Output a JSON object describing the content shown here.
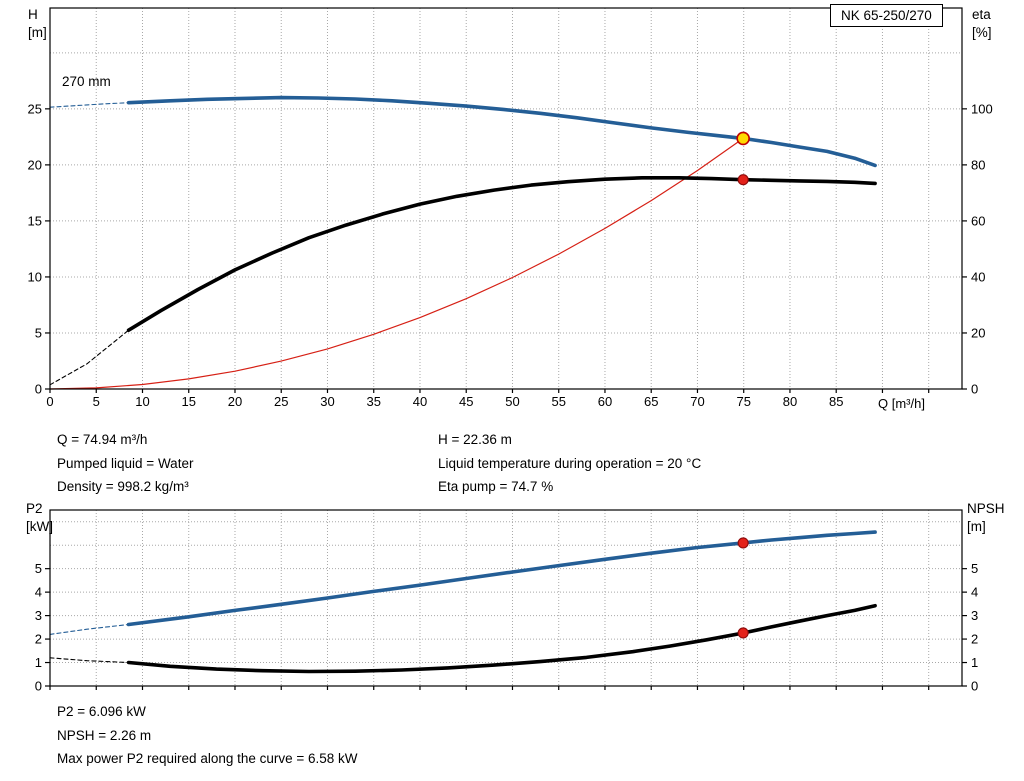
{
  "title_box": "NK 65-250/270",
  "colors": {
    "curve_blue": "#245e96",
    "curve_black": "#000000",
    "system_red": "#d62015",
    "grid": "#a8a8a8",
    "duty_red_fill": "#e32119",
    "duty_red_stroke": "#8f0b0b",
    "duty_yellow_fill": "#ffd900",
    "duty_yellow_stroke": "#c00000"
  },
  "top_chart": {
    "y_left_label": [
      "H",
      "[m]"
    ],
    "y_right_label": [
      "eta",
      "[%]"
    ],
    "x_label": "Q [m³/h]",
    "impeller_label": "270 mm"
  },
  "bottom_chart": {
    "y_left_label": [
      "P2",
      "[kW]"
    ],
    "y_right_label": [
      "NPSH",
      "[m]"
    ]
  },
  "info_lines_left": [
    "Q = 74.94 m³/h",
    "Pumped liquid = Water",
    "Density = 998.2 kg/m³"
  ],
  "info_lines_right": [
    "H = 22.36 m",
    "Liquid temperature during operation = 20 °C",
    "Eta pump = 74.7 %"
  ],
  "footer_lines": [
    "P2 = 6.096 kW",
    "NPSH = 2.26 m",
    "Max power P2 required along the curve = 6.58 kW"
  ],
  "chart_data": [
    {
      "type": "line",
      "x": {
        "label": "Q [m³/h]",
        "min": 0,
        "max": 98.6,
        "tick_step": 5,
        "labeled_ticks": [
          0,
          5,
          10,
          15,
          20,
          25,
          30,
          35,
          40,
          45,
          50,
          55,
          60,
          65,
          70,
          75,
          80,
          85
        ]
      },
      "y_left": {
        "label": "H [m]",
        "min": 0,
        "max": 34,
        "grid_step": 5,
        "labeled_ticks": [
          0,
          5,
          10,
          15,
          20,
          25
        ]
      },
      "y_right": {
        "label": "eta [%]",
        "min": 0,
        "max": 136,
        "labeled_ticks": [
          0,
          20,
          40,
          60,
          80,
          100
        ]
      },
      "series": [
        {
          "name": "head-curve-dashed",
          "axis": "left",
          "color": "#245e96",
          "width": 1.1,
          "dash": "4 3",
          "points": [
            [
              0,
              25.15
            ],
            [
              3,
              25.3
            ],
            [
              6,
              25.45
            ],
            [
              8.5,
              25.55
            ]
          ]
        },
        {
          "name": "eta-curve-dashed",
          "axis": "right",
          "color": "#000000",
          "width": 1.1,
          "dash": "4 3",
          "points": [
            [
              0,
              1.5
            ],
            [
              4,
              9
            ],
            [
              8.5,
              21
            ]
          ]
        },
        {
          "name": "system-curve",
          "axis": "left",
          "color": "#d62015",
          "width": 1.2,
          "dash": null,
          "points": [
            [
              0,
              0
            ],
            [
              5,
              0.1
            ],
            [
              10,
              0.4
            ],
            [
              15,
              0.9
            ],
            [
              20,
              1.59
            ],
            [
              25,
              2.49
            ],
            [
              30,
              3.58
            ],
            [
              35,
              4.88
            ],
            [
              40,
              6.37
            ],
            [
              45,
              8.06
            ],
            [
              50,
              9.95
            ],
            [
              55,
              12.04
            ],
            [
              60,
              14.33
            ],
            [
              65,
              16.81
            ],
            [
              70,
              19.5
            ],
            [
              74.94,
              22.36
            ]
          ]
        },
        {
          "name": "eta-curve",
          "axis": "right",
          "color": "#000000",
          "width": 3.6,
          "dash": null,
          "points": [
            [
              8.5,
              21
            ],
            [
              12,
              28
            ],
            [
              16,
              35.5
            ],
            [
              20,
              42.5
            ],
            [
              24,
              48.5
            ],
            [
              28,
              54
            ],
            [
              32,
              58.5
            ],
            [
              36,
              62.5
            ],
            [
              40,
              66
            ],
            [
              44,
              68.8
            ],
            [
              48,
              71
            ],
            [
              52,
              72.8
            ],
            [
              56,
              74
            ],
            [
              60,
              74.9
            ],
            [
              64,
              75.4
            ],
            [
              68,
              75.4
            ],
            [
              71.5,
              75.1
            ],
            [
              74.94,
              74.7
            ],
            [
              78,
              74.5
            ],
            [
              81,
              74.3
            ],
            [
              84,
              74.1
            ],
            [
              87,
              73.8
            ],
            [
              89.2,
              73.4
            ]
          ]
        },
        {
          "name": "head-curve",
          "axis": "left",
          "color": "#245e96",
          "width": 3.6,
          "dash": null,
          "points": [
            [
              8.5,
              25.55
            ],
            [
              13,
              25.72
            ],
            [
              17,
              25.85
            ],
            [
              21,
              25.93
            ],
            [
              25,
              26.0
            ],
            [
              29,
              25.97
            ],
            [
              33,
              25.88
            ],
            [
              37,
              25.72
            ],
            [
              41,
              25.5
            ],
            [
              45,
              25.25
            ],
            [
              49,
              24.95
            ],
            [
              53,
              24.6
            ],
            [
              57,
              24.2
            ],
            [
              61,
              23.75
            ],
            [
              65,
              23.3
            ],
            [
              69,
              22.9
            ],
            [
              72,
              22.63
            ],
            [
              74.94,
              22.36
            ],
            [
              78,
              22.0
            ],
            [
              81,
              21.6
            ],
            [
              84,
              21.2
            ],
            [
              87,
              20.6
            ],
            [
              89.2,
              19.95
            ]
          ]
        }
      ],
      "markers": [
        {
          "name": "eta-duty-point",
          "q": 74.94,
          "v": 74.7,
          "axis": "right",
          "style": "red",
          "r": 5
        },
        {
          "name": "head-duty-point",
          "q": 74.94,
          "v": 22.36,
          "axis": "left",
          "style": "yellow",
          "r": 6
        }
      ]
    },
    {
      "type": "line",
      "x": {
        "label": "",
        "min": 0,
        "max": 98.6,
        "tick_step": 5,
        "labeled_ticks": []
      },
      "y_left": {
        "label": "P2 [kW]",
        "min": 0,
        "max": 7.5,
        "grid_step": 1,
        "labeled_ticks": [
          0,
          1,
          2,
          3,
          4,
          5
        ]
      },
      "y_right": {
        "label": "NPSH [m]",
        "min": 0,
        "max": 7.5,
        "labeled_ticks": [
          0,
          1,
          2,
          3,
          4,
          5
        ]
      },
      "series": [
        {
          "name": "p2-curve-dashed",
          "axis": "left",
          "color": "#245e96",
          "width": 1.1,
          "dash": "4 3",
          "points": [
            [
              0,
              2.2
            ],
            [
              4,
              2.42
            ],
            [
              8.5,
              2.62
            ]
          ]
        },
        {
          "name": "npsh-curve-dashed",
          "axis": "right",
          "color": "#000000",
          "width": 1.1,
          "dash": "4 3",
          "points": [
            [
              0,
              1.2
            ],
            [
              4,
              1.08
            ],
            [
              8.5,
              1.0
            ]
          ]
        },
        {
          "name": "p2-curve",
          "axis": "left",
          "color": "#245e96",
          "width": 3.6,
          "dash": null,
          "points": [
            [
              8.5,
              2.62
            ],
            [
              15,
              2.95
            ],
            [
              20,
              3.22
            ],
            [
              25,
              3.48
            ],
            [
              30,
              3.75
            ],
            [
              35,
              4.03
            ],
            [
              40,
              4.3
            ],
            [
              45,
              4.58
            ],
            [
              50,
              4.86
            ],
            [
              55,
              5.13
            ],
            [
              60,
              5.4
            ],
            [
              65,
              5.66
            ],
            [
              70,
              5.9
            ],
            [
              74.94,
              6.096
            ],
            [
              78,
              6.22
            ],
            [
              81,
              6.32
            ],
            [
              84,
              6.42
            ],
            [
              87,
              6.5
            ],
            [
              89.2,
              6.56
            ]
          ]
        },
        {
          "name": "npsh-curve",
          "axis": "right",
          "color": "#000000",
          "width": 3.6,
          "dash": null,
          "points": [
            [
              8.5,
              1.0
            ],
            [
              13,
              0.84
            ],
            [
              18,
              0.72
            ],
            [
              23,
              0.65
            ],
            [
              28,
              0.62
            ],
            [
              33,
              0.63
            ],
            [
              38,
              0.68
            ],
            [
              43,
              0.77
            ],
            [
              48,
              0.89
            ],
            [
              53,
              1.04
            ],
            [
              58,
              1.22
            ],
            [
              63,
              1.46
            ],
            [
              67,
              1.7
            ],
            [
              71,
              1.97
            ],
            [
              74.94,
              2.26
            ],
            [
              78,
              2.52
            ],
            [
              81,
              2.76
            ],
            [
              84,
              3.0
            ],
            [
              87,
              3.22
            ],
            [
              89.2,
              3.42
            ]
          ]
        }
      ],
      "markers": [
        {
          "name": "p2-duty-point",
          "q": 74.94,
          "v": 6.096,
          "axis": "left",
          "style": "red",
          "r": 5
        },
        {
          "name": "npsh-duty-point",
          "q": 74.94,
          "v": 2.26,
          "axis": "right",
          "style": "red",
          "r": 5
        }
      ]
    }
  ]
}
